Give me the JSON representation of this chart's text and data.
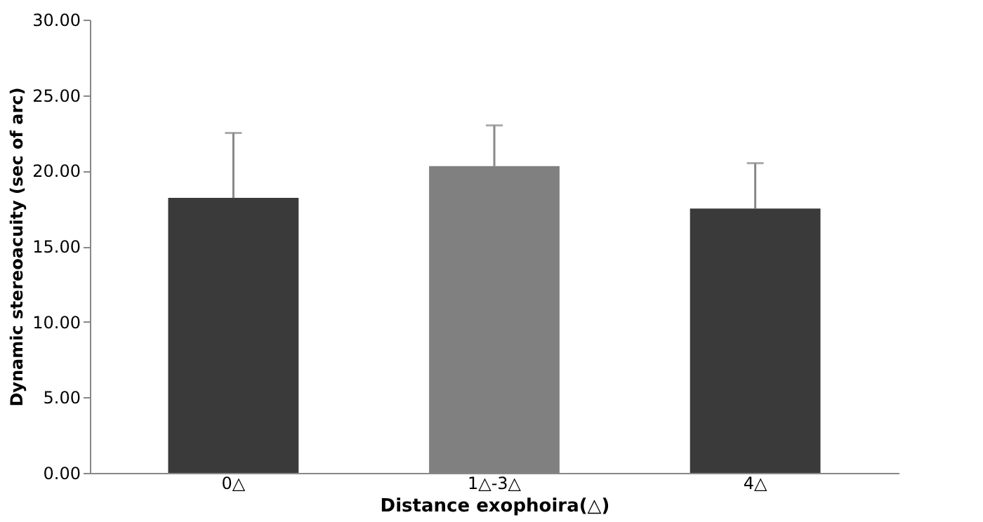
{
  "chart_data": {
    "type": "bar",
    "xlabel": "Distance exophoira(△)",
    "ylabel": "Dynamic stereoacuity (sec of arc)",
    "categories": [
      "0△",
      "1△-3△",
      "4△"
    ],
    "values": [
      18.2,
      20.3,
      17.5
    ],
    "colors": [
      "#3a3a3a",
      "#808080",
      "#3a3a3a"
    ],
    "errors": [
      [
        18.2,
        22.5
      ],
      [
        20.3,
        23.0
      ],
      [
        17.5,
        20.5
      ]
    ],
    "ylim": [
      0,
      30
    ],
    "yticks": [
      {
        "value": 0,
        "label": "0.00"
      },
      {
        "value": 5,
        "label": "5.00"
      },
      {
        "value": 10,
        "label": "10.00"
      },
      {
        "value": 15,
        "label": "15.00"
      },
      {
        "value": 20,
        "label": "20.00"
      },
      {
        "value": 25,
        "label": "25.00"
      },
      {
        "value": 30,
        "label": "30.00"
      }
    ],
    "grid": false
  }
}
